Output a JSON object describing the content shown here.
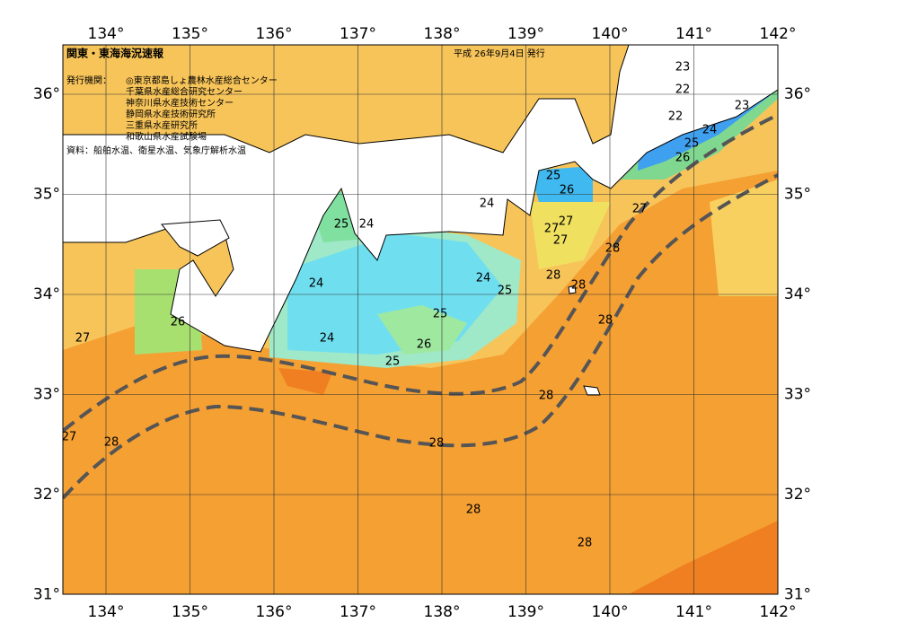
{
  "header": {
    "title": "関東・東海海況速報",
    "date": "平成 26年9月4日 発行"
  },
  "issuers": {
    "label": "発行機関：",
    "names": [
      "◎東京都島しょ農林水産総合センター",
      "千葉県水産総合研究センター",
      "神奈川県水産技術センター",
      "静岡県水産技術研究所",
      "三重県水産研究所",
      "和歌山県水産試験場"
    ]
  },
  "source": "資料：船舶水温、衛星水温、気象庁解析水温",
  "longitude_labels": [
    "134°",
    "135°",
    "136°",
    "137°",
    "138°",
    "139°",
    "140°",
    "141°",
    "142°"
  ],
  "latitude_labels": [
    "36°",
    "35°",
    "34°",
    "33°",
    "32°",
    "31°"
  ],
  "contour_labels": [
    23,
    22,
    23,
    22,
    24,
    25,
    26,
    25,
    26,
    27,
    24,
    25,
    24,
    27,
    27,
    27,
    28,
    28,
    28,
    24,
    24,
    25,
    25,
    28,
    26,
    24,
    26,
    27,
    25,
    28,
    27,
    28,
    28,
    28,
    28
  ]
}
